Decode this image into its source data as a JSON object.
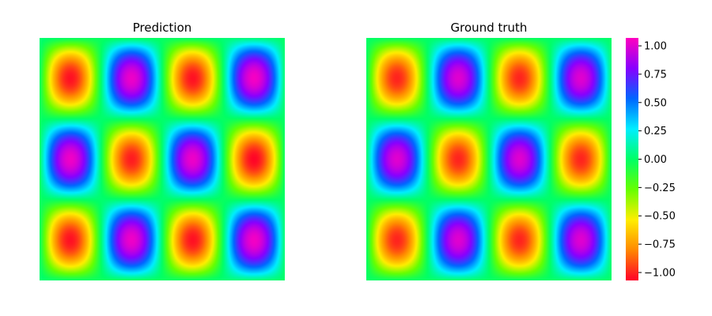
{
  "chart_data": {
    "type": "heatmap",
    "field": "sin(pi*k1*x)*sin(pi*k2*y)",
    "kx": 4,
    "ky": 3,
    "x_range": [
      0,
      1
    ],
    "y_range": [
      0,
      1
    ],
    "grid_resolution": 200,
    "colormap": "gist_rainbow",
    "panels": [
      {
        "title": "Prediction",
        "amplitude": 1.04,
        "noise": 0.025
      },
      {
        "title": "Ground truth",
        "amplitude": 1.0,
        "noise": 0
      }
    ],
    "colorbar": {
      "vmin": -1.07,
      "vmax": 1.07,
      "ticks": [
        1.0,
        0.75,
        0.5,
        0.25,
        0.0,
        -0.25,
        -0.5,
        -0.75,
        -1.0
      ],
      "tick_labels": [
        "1.00",
        "0.75",
        "0.50",
        "0.25",
        "0.00",
        "−0.25",
        "−0.50",
        "−0.75",
        "−1.00"
      ]
    }
  }
}
